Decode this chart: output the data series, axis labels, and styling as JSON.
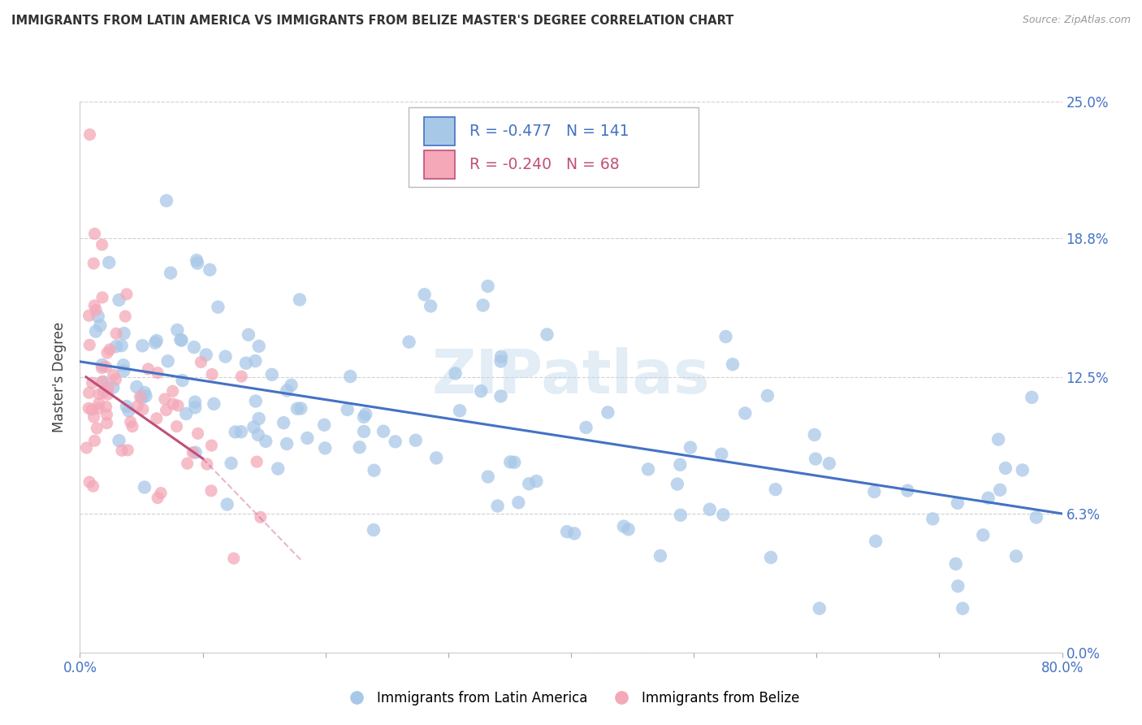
{
  "title": "IMMIGRANTS FROM LATIN AMERICA VS IMMIGRANTS FROM BELIZE MASTER'S DEGREE CORRELATION CHART",
  "source": "Source: ZipAtlas.com",
  "ylabel": "Master's Degree",
  "xlim": [
    0,
    80
  ],
  "ylim": [
    0,
    25.0
  ],
  "ytick_values": [
    0.0,
    6.3,
    12.5,
    18.8,
    25.0
  ],
  "blue_fill": "#a8c8e8",
  "blue_line": "#4472c4",
  "pink_fill": "#f4a8b8",
  "pink_line": "#c0507a",
  "legend_blue_R": "-0.477",
  "legend_blue_N": "141",
  "legend_pink_R": "-0.240",
  "legend_pink_N": "68",
  "watermark": "ZIPatlas",
  "blue_trend_x0": 0,
  "blue_trend_y0": 13.2,
  "blue_trend_x1": 80,
  "blue_trend_y1": 6.3,
  "pink_trend_x0": 0.5,
  "pink_trend_y0": 12.5,
  "pink_trend_x1_solid": 10,
  "pink_trend_y1_solid": 8.8,
  "pink_trend_x1_dash": 18,
  "pink_trend_y1_dash": 4.2
}
